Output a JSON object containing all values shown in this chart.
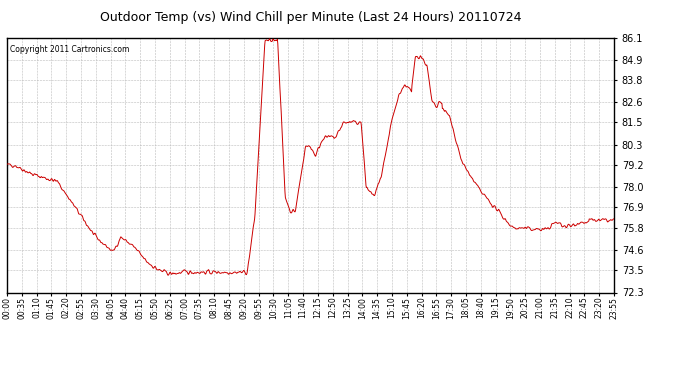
{
  "title": "Outdoor Temp (vs) Wind Chill per Minute (Last 24 Hours) 20110724",
  "copyright": "Copyright 2011 Cartronics.com",
  "line_color": "#cc0000",
  "background_color": "#ffffff",
  "grid_color": "#bbbbbb",
  "ylim": [
    72.3,
    86.1
  ],
  "yticks": [
    72.3,
    73.5,
    74.6,
    75.8,
    76.9,
    78.0,
    79.2,
    80.3,
    81.5,
    82.6,
    83.8,
    84.9,
    86.1
  ],
  "xtick_labels": [
    "00:00",
    "00:35",
    "01:10",
    "01:45",
    "02:20",
    "02:55",
    "03:30",
    "04:05",
    "04:40",
    "05:15",
    "05:50",
    "06:25",
    "07:00",
    "07:35",
    "08:10",
    "08:45",
    "09:20",
    "09:55",
    "10:30",
    "11:05",
    "11:40",
    "12:15",
    "12:50",
    "13:25",
    "14:00",
    "14:35",
    "15:10",
    "15:45",
    "16:20",
    "16:55",
    "17:30",
    "18:05",
    "18:40",
    "19:15",
    "19:50",
    "20:25",
    "21:00",
    "21:35",
    "22:10",
    "22:45",
    "23:20",
    "23:55"
  ],
  "num_points": 1440,
  "figwidth": 6.9,
  "figheight": 3.75,
  "dpi": 100
}
